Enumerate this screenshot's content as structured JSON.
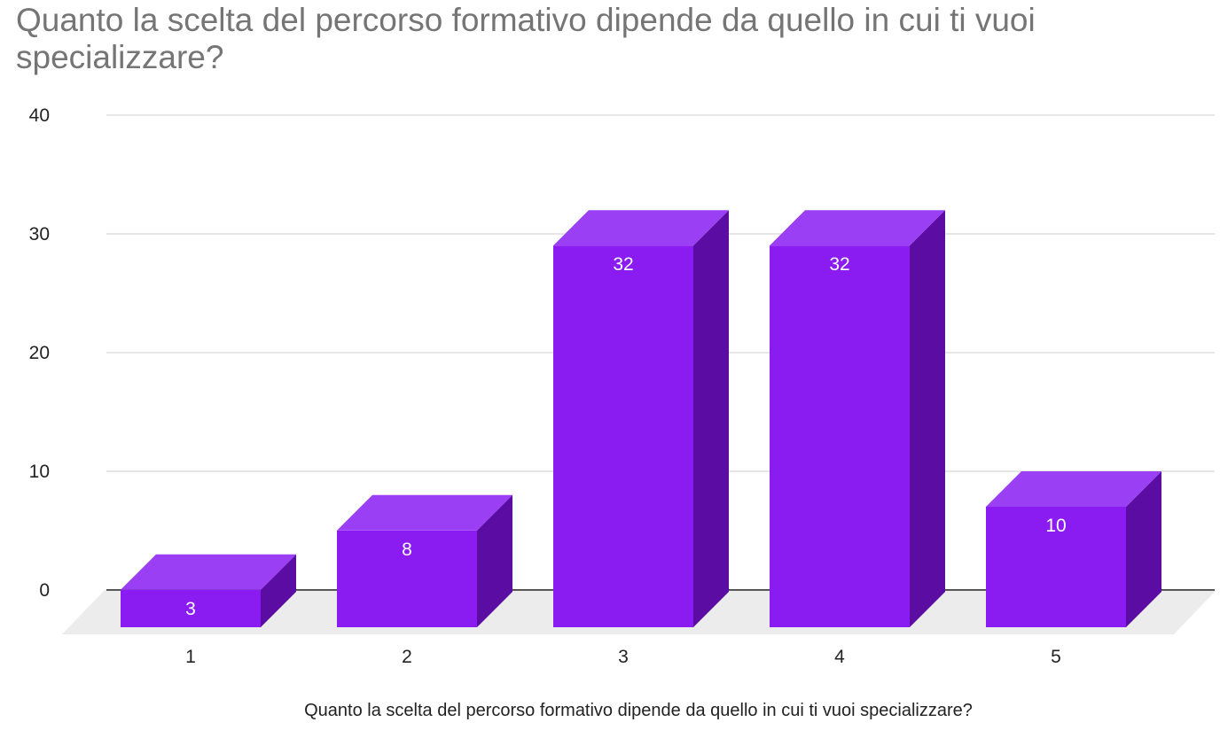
{
  "chart_data": {
    "type": "bar",
    "style": "3d",
    "title": "Quanto la scelta del percorso formativo dipende da quello in cui ti vuoi specializzare?",
    "xlabel": "Quanto la scelta del percorso formativo dipende da quello in cui ti vuoi specializzare?",
    "ylabel": "",
    "categories": [
      "1",
      "2",
      "3",
      "4",
      "5"
    ],
    "values": [
      3,
      8,
      32,
      32,
      10
    ],
    "data_labels": [
      "3",
      "8",
      "32",
      "32",
      "10"
    ],
    "ylim": [
      0,
      40
    ],
    "yticks": [
      0,
      10,
      20,
      30,
      40
    ],
    "grid": true,
    "legend": "none",
    "colors": {
      "bar_front": "#8a1cf2",
      "bar_top": "#9b3ff5",
      "bar_side": "#5b0da3",
      "floor": "#ececec",
      "grid": "#cccccc",
      "baseline": "#333333",
      "title": "#757575"
    }
  }
}
